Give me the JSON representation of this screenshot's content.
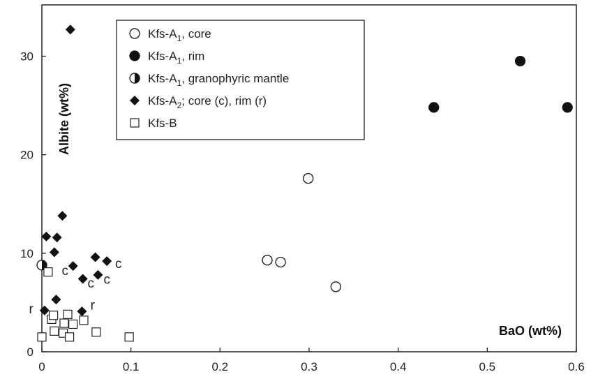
{
  "chart_data": {
    "type": "scatter",
    "title": "",
    "xlabel": "BaO (wt%)",
    "ylabel": "Albite (wt%)",
    "xlim": [
      0,
      0.6
    ],
    "ylim": [
      0,
      35
    ],
    "x_ticks": [
      0,
      0.1,
      0.2,
      0.3,
      0.4,
      0.5,
      0.6
    ],
    "x_tick_labels": [
      "0",
      "0.1",
      "0.2",
      "0.3",
      "0.4",
      "0.5",
      "0.6"
    ],
    "y_ticks": [
      0,
      10,
      20,
      30
    ],
    "y_tick_labels": [
      "0",
      "10",
      "20",
      "30"
    ],
    "grid": false,
    "legend_position": "top-left",
    "series": [
      {
        "name": "Kfs-A1, core",
        "legend_parts": [
          "Kfs-A",
          "1",
          ", core"
        ],
        "marker": "circle-open",
        "points": [
          {
            "x": 0.253,
            "y": 9.3
          },
          {
            "x": 0.268,
            "y": 9.1
          },
          {
            "x": 0.299,
            "y": 17.6
          },
          {
            "x": 0.33,
            "y": 6.6
          }
        ]
      },
      {
        "name": "Kfs-A1, rim",
        "legend_parts": [
          "Kfs-A",
          "1",
          ", rim"
        ],
        "marker": "circle-filled",
        "points": [
          {
            "x": 0.44,
            "y": 24.8
          },
          {
            "x": 0.537,
            "y": 29.5
          },
          {
            "x": 0.59,
            "y": 24.8
          }
        ]
      },
      {
        "name": "Kfs-A1, granophyric mantle",
        "legend_parts": [
          "Kfs-A",
          "1",
          ", granophyric mantle"
        ],
        "marker": "circle-half",
        "points": [
          {
            "x": 0.0,
            "y": 8.8
          }
        ]
      },
      {
        "name": "Kfs-A2; core (c), rim (r)",
        "legend_parts": [
          "Kfs-A",
          "2",
          "; core (",
          "c",
          "), rim (",
          "r",
          ")"
        ],
        "marker": "diamond-filled",
        "points": [
          {
            "x": 0.032,
            "y": 32.7
          },
          {
            "x": 0.023,
            "y": 13.8
          },
          {
            "x": 0.005,
            "y": 11.7
          },
          {
            "x": 0.017,
            "y": 11.6
          },
          {
            "x": 0.014,
            "y": 10.1
          },
          {
            "x": 0.06,
            "y": 9.6
          },
          {
            "x": 0.073,
            "y": 9.2
          },
          {
            "x": 0.035,
            "y": 8.7
          },
          {
            "x": 0.063,
            "y": 7.8
          },
          {
            "x": 0.046,
            "y": 7.4
          },
          {
            "x": 0.016,
            "y": 5.3
          },
          {
            "x": 0.003,
            "y": 4.2
          },
          {
            "x": 0.045,
            "y": 4.1
          }
        ]
      },
      {
        "name": "Kfs-B",
        "legend_parts": [
          "Kfs-B"
        ],
        "marker": "square-open",
        "points": [
          {
            "x": 0.007,
            "y": 8.1
          },
          {
            "x": 0.0,
            "y": 1.5
          },
          {
            "x": 0.011,
            "y": 3.3
          },
          {
            "x": 0.013,
            "y": 3.7
          },
          {
            "x": 0.014,
            "y": 2.1
          },
          {
            "x": 0.025,
            "y": 2.9
          },
          {
            "x": 0.024,
            "y": 1.9
          },
          {
            "x": 0.029,
            "y": 3.8
          },
          {
            "x": 0.031,
            "y": 1.5
          },
          {
            "x": 0.035,
            "y": 2.8
          },
          {
            "x": 0.047,
            "y": 3.2
          },
          {
            "x": 0.061,
            "y": 2.0
          },
          {
            "x": 0.098,
            "y": 1.5
          }
        ]
      }
    ],
    "annotations": [
      {
        "text": "c",
        "x": 0.026,
        "y": 7.8
      },
      {
        "text": "c",
        "x": 0.055,
        "y": 6.5
      },
      {
        "text": "c",
        "x": 0.073,
        "y": 6.9
      },
      {
        "text": "c",
        "x": 0.086,
        "y": 8.5
      },
      {
        "text": "r",
        "x": -0.012,
        "y": 3.9
      },
      {
        "text": "r",
        "x": 0.057,
        "y": 4.3
      }
    ]
  }
}
